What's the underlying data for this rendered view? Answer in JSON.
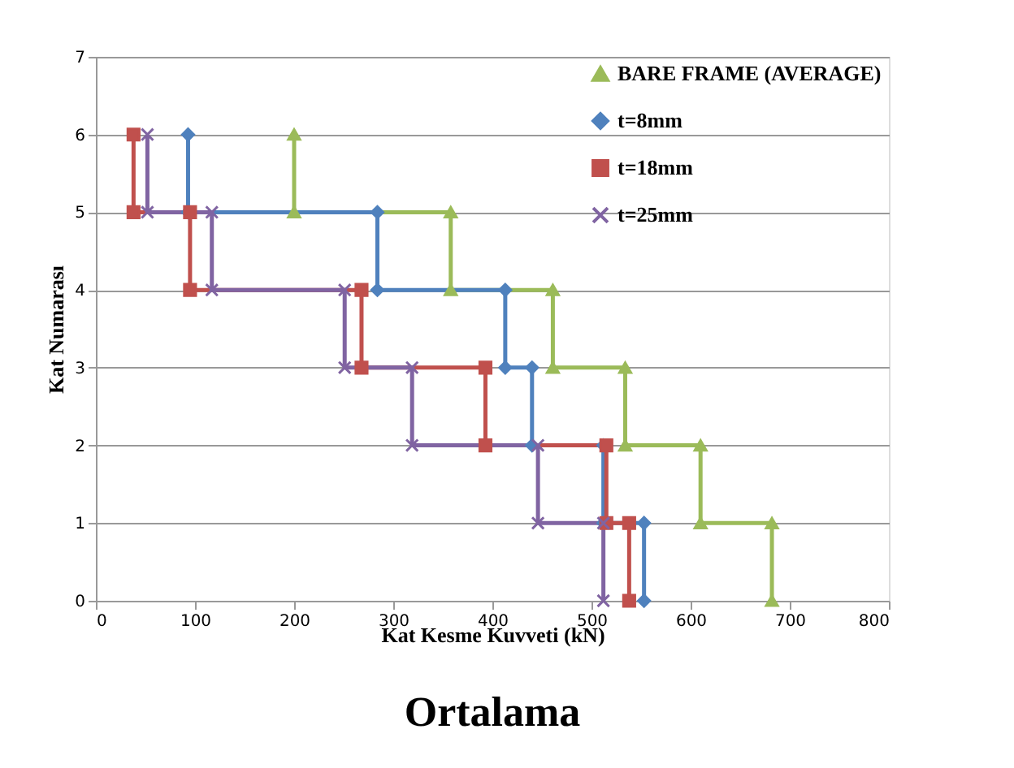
{
  "chart_data": {
    "type": "line",
    "xlabel": "Kat Kesme Kuvveti (kN)",
    "ylabel": "Kat Numarası",
    "annotations": [
      "Ortalama"
    ],
    "xlim": [
      0,
      800
    ],
    "xticks": [
      0,
      100,
      200,
      300,
      400,
      500,
      600,
      700,
      800
    ],
    "ylim": [
      0,
      7
    ],
    "yticks": [
      0,
      1,
      2,
      3,
      4,
      5,
      6,
      7
    ],
    "grid": "y",
    "legend": "top right",
    "line_style": "solid",
    "series": [
      {
        "name": "BARE FRAME (AVERAGE)",
        "color": "#9bbb59",
        "marker": "triangle",
        "x": [
          200,
          200,
          358,
          358,
          461,
          461,
          534,
          534,
          610,
          610,
          682,
          682
        ],
        "values": [
          6,
          5,
          5,
          4,
          4,
          3,
          3,
          2,
          2,
          1,
          1,
          0
        ]
      },
      {
        "name": "t=8mm",
        "color": "#4f81bd",
        "marker": "diamond",
        "x": [
          93,
          93,
          284,
          284,
          413,
          413,
          440,
          440,
          512,
          512,
          553,
          553
        ],
        "values": [
          6,
          5,
          5,
          4,
          4,
          3,
          3,
          2,
          2,
          1,
          1,
          0
        ]
      },
      {
        "name": "t=18mm",
        "color": "#c0504d",
        "marker": "square",
        "x": [
          38,
          38,
          95,
          95,
          268,
          268,
          393,
          393,
          515,
          515,
          538,
          538
        ],
        "values": [
          6,
          5,
          5,
          4,
          4,
          3,
          3,
          2,
          2,
          1,
          1,
          0
        ]
      },
      {
        "name": "t=25mm",
        "color": "#8064a2",
        "marker": "cross",
        "x": [
          52,
          52,
          117,
          117,
          251,
          251,
          319,
          319,
          446,
          446,
          512,
          512
        ],
        "values": [
          6,
          5,
          5,
          4,
          4,
          3,
          3,
          2,
          2,
          1,
          1,
          0
        ]
      }
    ]
  }
}
